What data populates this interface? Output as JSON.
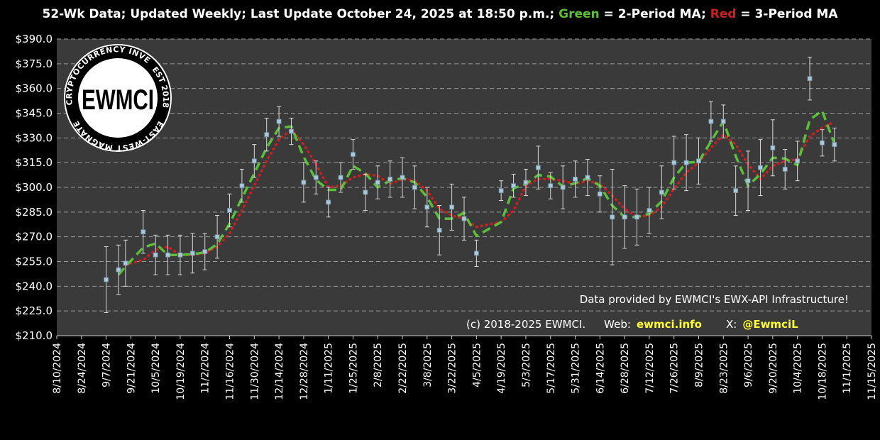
{
  "title": {
    "part1": "52-Wk Data; Updated Weekly; Last Update October 24, 2025 at 18:50 p.m.; ",
    "green_word": "Green",
    "part2": " = 2-Period MA; ",
    "red_word": "Red",
    "part3": " = 3-Period MA"
  },
  "logo": {
    "center_text": "EWMCI",
    "ring_top": "CRYPTOCURRENCY INVESTMENTS",
    "ring_right": "EST 2018",
    "ring_bottom": "EAST-WEST MAGNATE"
  },
  "notes": {
    "line1": "Data provided by EWMCI's EWX-API Infrastructure!",
    "copyright": "(c) 2018-2025 EWMCI.",
    "web_label": "Web:",
    "web_value": "ewmci.info",
    "x_label": "X:",
    "x_value": "@EwmciL"
  },
  "colors": {
    "background": "#000000",
    "plot_area": "#3a3a3a",
    "grid": "#9a9a9a",
    "marker": "#a9c8d8",
    "ma2": "#5bbf3a",
    "ma3": "#cc1f1f",
    "highlight": "#ffff33"
  },
  "chart_data": {
    "type": "scatter",
    "xlabel": "",
    "ylabel": "",
    "ylim": [
      210,
      390
    ],
    "yticks": [
      "$210.0",
      "$225.0",
      "$240.0",
      "$255.0",
      "$270.0",
      "$285.0",
      "$300.0",
      "$315.0",
      "$330.0",
      "$345.0",
      "$360.0",
      "$375.0",
      "$390.0"
    ],
    "xlim": [
      "2024-08-10",
      "2025-11-15"
    ],
    "xticks": [
      "8/10/2024",
      "8/24/2024",
      "9/7/2024",
      "9/21/2024",
      "10/5/2024",
      "10/19/2024",
      "11/2/2024",
      "11/16/2024",
      "11/30/2024",
      "12/14/2024",
      "12/28/2024",
      "1/11/2025",
      "1/25/2025",
      "2/8/2025",
      "2/22/2025",
      "3/8/2025",
      "3/22/2025",
      "4/5/2025",
      "4/19/2025",
      "5/3/2025",
      "5/17/2025",
      "5/31/2025",
      "6/14/2025",
      "6/28/2025",
      "7/12/2025",
      "7/26/2025",
      "8/9/2025",
      "8/23/2025",
      "9/6/2025",
      "9/20/2025",
      "10/4/2025",
      "10/18/2025",
      "11/1/2025",
      "11/15/2025"
    ],
    "grid": true,
    "series": [
      {
        "name": "",
        "dates": [
          "2024-09-07",
          "2024-09-14",
          "2024-09-18",
          "2024-09-28",
          "2024-10-05",
          "2024-10-12",
          "2024-10-19",
          "2024-10-26",
          "2024-11-02",
          "2024-11-09",
          "2024-11-16",
          "2024-11-23",
          "2024-11-30",
          "2024-12-07",
          "2024-12-14",
          "2024-12-21",
          "2024-12-28",
          "2025-01-04",
          "2025-01-11",
          "2025-01-18",
          "2025-01-25",
          "2025-02-01",
          "2025-02-08",
          "2025-02-15",
          "2025-02-22",
          "2025-03-01",
          "2025-03-08",
          "2025-03-15",
          "2025-03-22",
          "2025-03-29",
          "2025-04-05",
          "2025-04-19",
          "2025-04-26",
          "2025-05-03",
          "2025-05-10",
          "2025-05-17",
          "2025-05-24",
          "2025-05-31",
          "2025-06-07",
          "2025-06-14",
          "2025-06-21",
          "2025-06-28",
          "2025-07-05",
          "2025-07-12",
          "2025-07-19",
          "2025-07-26",
          "2025-08-02",
          "2025-08-09",
          "2025-08-16",
          "2025-08-23",
          "2025-08-30",
          "2025-09-06",
          "2025-09-13",
          "2025-09-20",
          "2025-09-27",
          "2025-10-04",
          "2025-10-11",
          "2025-10-18",
          "2025-10-25"
        ],
        "values": [
          244,
          250,
          254,
          273,
          259,
          259,
          259,
          260,
          261,
          270,
          286,
          301,
          316,
          332,
          340,
          334,
          303,
          306,
          291,
          306,
          320,
          297,
          303,
          305,
          306,
          300,
          288,
          274,
          288,
          281,
          260,
          298,
          301,
          303,
          312,
          301,
          300,
          305,
          306,
          296,
          282,
          282,
          282,
          286,
          297,
          315,
          315,
          316,
          340,
          340,
          298,
          304,
          312,
          324,
          311,
          316,
          366,
          327,
          326
        ],
        "error": [
          20,
          15,
          14,
          13,
          12,
          12,
          12,
          12,
          11,
          13,
          10,
          10,
          10,
          10,
          9,
          8,
          12,
          10,
          9,
          9,
          9,
          11,
          10,
          11,
          12,
          13,
          12,
          15,
          14,
          13,
          8,
          6,
          7,
          8,
          13,
          8,
          13,
          11,
          11,
          11,
          29,
          19,
          17,
          14,
          16,
          16,
          17,
          14,
          12,
          10,
          15,
          18,
          17,
          17,
          12,
          12,
          13,
          8,
          10
        ]
      },
      {
        "name": "2-Period MA",
        "dates": [
          "2024-09-14",
          "2024-09-18",
          "2024-09-28",
          "2024-10-05",
          "2024-10-12",
          "2024-10-19",
          "2024-10-26",
          "2024-11-02",
          "2024-11-09",
          "2024-11-16",
          "2024-11-23",
          "2024-11-30",
          "2024-12-07",
          "2024-12-14",
          "2024-12-21",
          "2024-12-28",
          "2025-01-04",
          "2025-01-11",
          "2025-01-18",
          "2025-01-25",
          "2025-02-01",
          "2025-02-08",
          "2025-02-15",
          "2025-02-22",
          "2025-03-01",
          "2025-03-08",
          "2025-03-15",
          "2025-03-22",
          "2025-03-29",
          "2025-04-05",
          "2025-04-19",
          "2025-04-26",
          "2025-05-03",
          "2025-05-10",
          "2025-05-17",
          "2025-05-24",
          "2025-05-31",
          "2025-06-07",
          "2025-06-14",
          "2025-06-21",
          "2025-06-28",
          "2025-07-05",
          "2025-07-12",
          "2025-07-19",
          "2025-07-26",
          "2025-08-02",
          "2025-08-09",
          "2025-08-16",
          "2025-08-23",
          "2025-08-30",
          "2025-09-06",
          "2025-09-13",
          "2025-09-20",
          "2025-09-27",
          "2025-10-04",
          "2025-10-11",
          "2025-10-18",
          "2025-10-25"
        ],
        "values": [
          247,
          252,
          263.5,
          266,
          259,
          259,
          259.5,
          260.5,
          265.5,
          278,
          293.5,
          308.5,
          324,
          336,
          337,
          318.5,
          304.5,
          298.5,
          298.5,
          313,
          308.5,
          300,
          304,
          305.5,
          303,
          294,
          281,
          281,
          284.5,
          270.5,
          279,
          299.5,
          302,
          307.5,
          306.5,
          300.5,
          302.5,
          305.5,
          301,
          289,
          282,
          282,
          284,
          291.5,
          306,
          315,
          315.5,
          328,
          340,
          319,
          301,
          308,
          318,
          317.5,
          313.5,
          341,
          346.5,
          326.5
        ]
      },
      {
        "name": "3-Period MA",
        "dates": [
          "2024-09-18",
          "2024-09-28",
          "2024-10-05",
          "2024-10-12",
          "2024-10-19",
          "2024-10-26",
          "2024-11-02",
          "2024-11-09",
          "2024-11-16",
          "2024-11-23",
          "2024-11-30",
          "2024-12-07",
          "2024-12-14",
          "2024-12-21",
          "2024-12-28",
          "2025-01-04",
          "2025-01-11",
          "2025-01-18",
          "2025-01-25",
          "2025-02-01",
          "2025-02-08",
          "2025-02-15",
          "2025-02-22",
          "2025-03-01",
          "2025-03-08",
          "2025-03-15",
          "2025-03-22",
          "2025-03-29",
          "2025-04-05",
          "2025-04-19",
          "2025-04-26",
          "2025-05-03",
          "2025-05-10",
          "2025-05-17",
          "2025-05-24",
          "2025-05-31",
          "2025-06-07",
          "2025-06-14",
          "2025-06-21",
          "2025-06-28",
          "2025-07-05",
          "2025-07-12",
          "2025-07-19",
          "2025-07-26",
          "2025-08-02",
          "2025-08-09",
          "2025-08-16",
          "2025-08-23",
          "2025-08-30",
          "2025-09-06",
          "2025-09-13",
          "2025-09-20",
          "2025-09-27",
          "2025-10-04",
          "2025-10-11",
          "2025-10-18",
          "2025-10-25"
        ],
        "values": [
          253,
          256,
          262,
          264,
          259,
          259,
          260,
          264,
          272,
          286,
          301,
          316,
          329,
          335,
          326,
          314,
          300,
          301,
          306,
          308,
          307,
          302,
          305,
          304,
          298,
          287,
          283,
          281,
          276,
          279,
          286,
          301,
          305,
          305,
          304,
          302,
          304,
          302,
          295,
          287,
          282,
          283,
          288,
          299,
          309,
          315,
          324,
          332,
          326,
          314,
          305,
          313,
          316,
          317,
          331,
          336,
          340
        ]
      }
    ]
  }
}
